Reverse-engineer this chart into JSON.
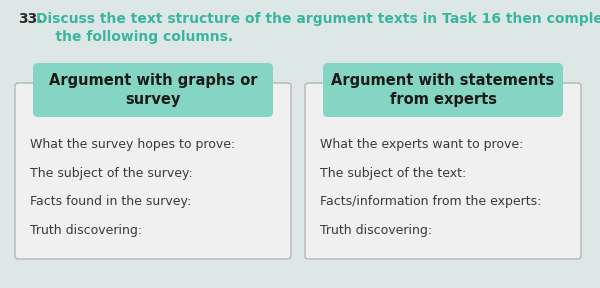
{
  "bg_color": "#dde8e6",
  "title_number": "33.",
  "title_rest": "Discuss the text structure of the argument texts in Task 16 then complete\n    the following columns.",
  "title_color": "#3ab59e",
  "title_number_color": "#2a2a2a",
  "header1": "Argument with graphs or\nsurvey",
  "header2": "Argument with statements\nfrom experts",
  "header_bg": "#85d5c4",
  "header_text_color": "#1a1a1a",
  "box_bg": "#f0f0f0",
  "box_border": "#b0b8b8",
  "left_items": [
    "What the survey hopes to prove:",
    "The subject of the survey:",
    "Facts found in the survey:",
    "Truth discovering:"
  ],
  "right_items": [
    "What the experts want to prove:",
    "The subject of the text:",
    "Facts/information from the experts:",
    "Truth discovering:"
  ],
  "item_color": "#3a3a3a",
  "item_fontsize": 9.0,
  "header_fontsize": 10.5
}
